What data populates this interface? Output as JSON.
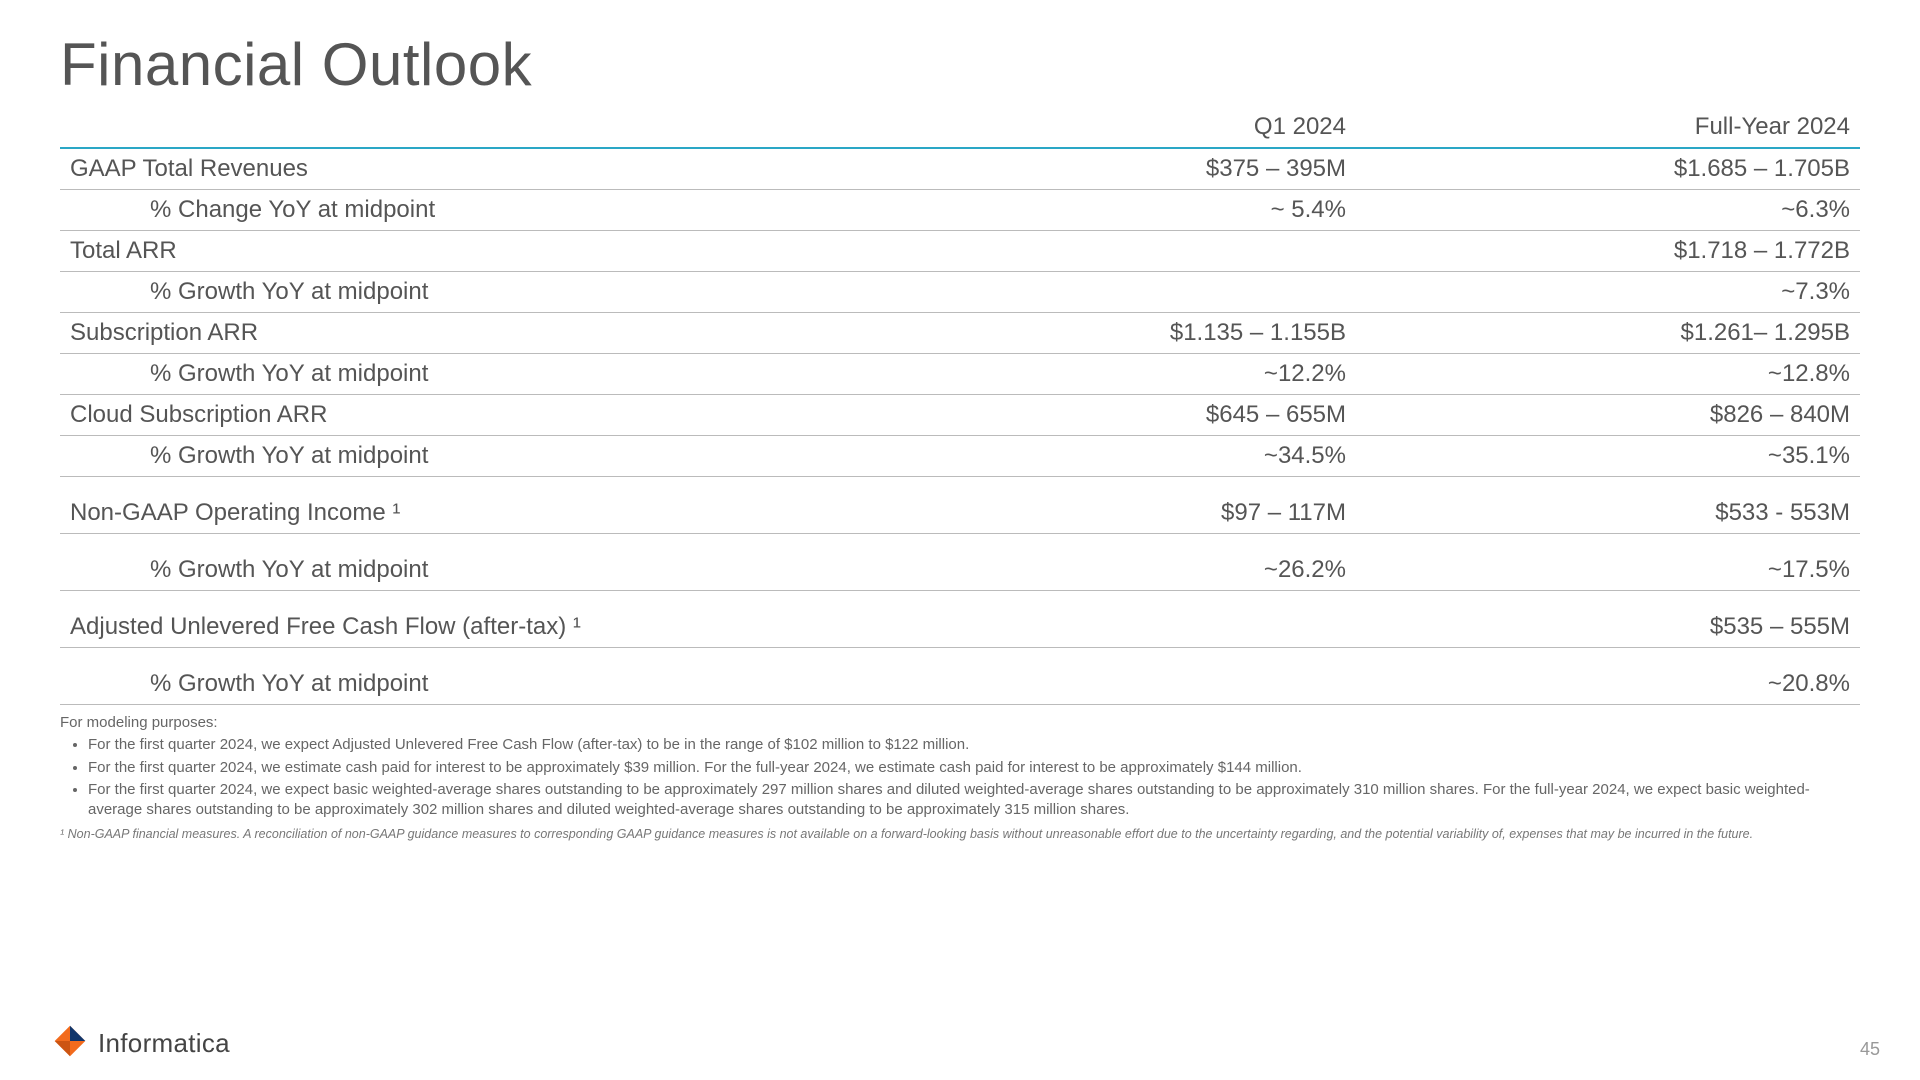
{
  "title": "Financial Outlook",
  "columns": {
    "metric": "",
    "q1": "Q1 2024",
    "fy": "Full-Year 2024"
  },
  "rows": [
    {
      "label": "GAAP Total Revenues",
      "q1": "$375 – 395M",
      "fy": "$1.685 – 1.705B",
      "sub": false
    },
    {
      "label": "%  Change YoY at midpoint",
      "q1": "~ 5.4%",
      "fy": "~6.3%",
      "sub": true
    },
    {
      "label": "Total ARR",
      "q1": "",
      "fy": "$1.718 – 1.772B",
      "sub": false
    },
    {
      "label": "%  Growth YoY at midpoint",
      "q1": "",
      "fy": "~7.3%",
      "sub": true
    },
    {
      "label": "Subscription ARR",
      "q1": "$1.135 – 1.155B",
      "fy": "$1.261– 1.295B",
      "sub": false
    },
    {
      "label": "%  Growth YoY at midpoint",
      "q1": "~12.2%",
      "fy": "~12.8%",
      "sub": true
    },
    {
      "label": "Cloud Subscription ARR",
      "q1": "$645 – 655M",
      "fy": "$826 – 840M",
      "sub": false
    },
    {
      "label": "% Growth YoY at midpoint",
      "q1": "~34.5%",
      "fy": "~35.1%",
      "sub": true
    },
    {
      "label": "Non-GAAP Operating Income ¹",
      "q1": "$97 – 117M",
      "fy": "$533 - 553M",
      "sub": false,
      "gap": true
    },
    {
      "label": "% Growth YoY at midpoint",
      "q1": "~26.2%",
      "fy": "~17.5%",
      "sub": true,
      "gap": true
    },
    {
      "label": "Adjusted Unlevered Free Cash Flow (after-tax) ¹",
      "q1": "",
      "fy": "$535 – 555M",
      "sub": false,
      "gap": true
    },
    {
      "label": "% Growth YoY at midpoint",
      "q1": "",
      "fy": "~20.8%",
      "sub": true,
      "gap": true
    }
  ],
  "notes": {
    "lead": "For modeling purposes:",
    "bullets": [
      "For the first quarter 2024, we expect Adjusted Unlevered Free Cash Flow (after-tax) to be in the range of $102 million to $122 million.",
      "For the first quarter 2024, we estimate cash paid for interest to be approximately $39 million. For the full-year 2024, we estimate cash paid for interest to be approximately $144 million.",
      "For the first quarter 2024, we expect basic weighted-average shares outstanding to be approximately 297  million shares and diluted weighted-average shares outstanding to be approximately 310 million shares. For the full-year 2024, we expect basic weighted-average shares outstanding to be approximately 302 million shares and diluted weighted-average shares outstanding to be approximately 315 million shares."
    ]
  },
  "disclaimer": "¹ Non-GAAP financial measures. A reconciliation of non-GAAP guidance measures to corresponding GAAP guidance measures is not available on a forward-looking basis without unreasonable effort due to the uncertainty regarding, and the potential variability of, expenses that may be incurred in the future.",
  "brand": "Informatica",
  "pagenum": "45",
  "colors": {
    "header_rule": "#2aa7c6",
    "row_rule": "#bbbbbb",
    "text": "#555555",
    "logo_orange": "#f26b1d",
    "logo_blue": "#10356b"
  }
}
